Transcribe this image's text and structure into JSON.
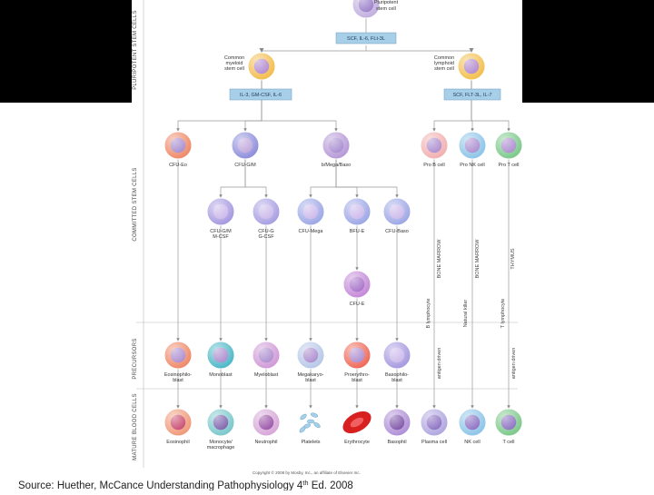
{
  "stages": [
    "PLURIPOTENT STEM CELLS",
    "COMMITTED STEM CELLS",
    "PRECURSORS",
    "MATURE BLOOD CELLS"
  ],
  "factors": [
    "SCF, IL-6, FLt-3L",
    "IL-3, GM-CSF, IL-6",
    "SCF, FLT-3L, IL-7"
  ],
  "nodes": [
    {
      "label": [
        "Pluripotent",
        "stem cell"
      ]
    },
    {
      "label": [
        "Common",
        "myeloid",
        "stem cell"
      ]
    },
    {
      "label": [
        "Common",
        "lymphoid",
        "stem cell"
      ]
    },
    {
      "label": [
        "CFU-Eo"
      ]
    },
    {
      "label": [
        "CFU-G/M"
      ]
    },
    {
      "label": [
        "b/Mega/Baso"
      ]
    },
    {
      "label": [
        "Pro B cell"
      ]
    },
    {
      "label": [
        "Pro NK cell"
      ]
    },
    {
      "label": [
        "Pro T cell"
      ]
    },
    {
      "label": [
        "CFU-G/M",
        "M-CSF"
      ]
    },
    {
      "label": [
        "CFU-G",
        "G-CSF"
      ]
    },
    {
      "label": [
        "CFU-Mega"
      ]
    },
    {
      "label": [
        "BFU-E"
      ]
    },
    {
      "label": [
        "CFU-Baso"
      ]
    },
    {
      "label": [
        "CFU-E"
      ]
    },
    {
      "label": [
        "Eosinophilo-",
        "blast"
      ]
    },
    {
      "label": [
        "Monoblast"
      ]
    },
    {
      "label": [
        "Myeloblast"
      ]
    },
    {
      "label": [
        "Megakaryo-",
        "blast"
      ]
    },
    {
      "label": [
        "Proerythro-",
        "blast"
      ]
    },
    {
      "label": [
        "Basophilo-",
        "blast"
      ]
    },
    {
      "label": [
        "Eosinophil"
      ]
    },
    {
      "label": [
        "Monocyte/",
        "macrophage"
      ]
    },
    {
      "label": [
        "Neutrophil"
      ]
    },
    {
      "label": [
        "Platelets"
      ]
    },
    {
      "label": [
        "Erythrocyte"
      ]
    },
    {
      "label": [
        "Basophil"
      ]
    },
    {
      "label": [
        "Plasma cell"
      ]
    },
    {
      "label": [
        "NK cell"
      ]
    },
    {
      "label": [
        "T cell"
      ]
    }
  ],
  "annotations": [
    "BONE MARROW",
    "BONE MARROW",
    "THYMUS",
    "B lymphocyte",
    "Natural killer",
    "T lymphocyte",
    "antigen driven",
    "antigen driven"
  ],
  "copyright": "Copyright © 2008 by Mosby, Inc., an affiliate of Elsevier Inc.",
  "source": {
    "text": "Source: Huether, McCance Understanding Pathophysiology 4",
    "superscript": "th",
    "suffix": " Ed. 2008"
  }
}
